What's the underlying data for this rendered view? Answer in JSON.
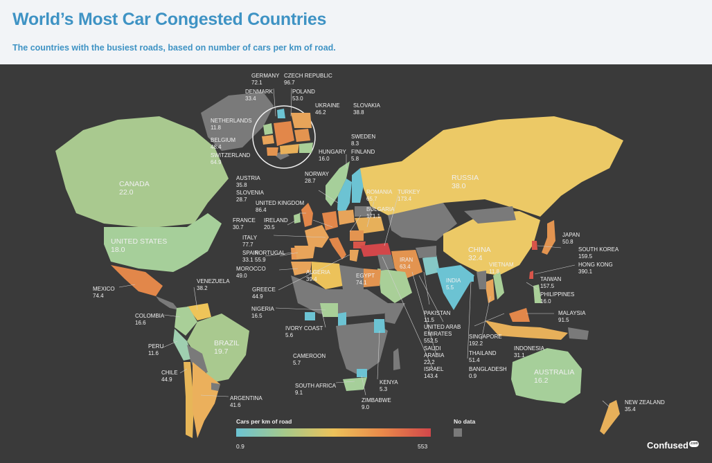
{
  "header": {
    "title": "World’s Most Car Congested Countries",
    "subtitle": "The countries with the busiest roads, based on number of cars per km of road."
  },
  "colors": {
    "no_data": "#7a7a7a",
    "scale_low": "#6cc3d3",
    "scale_mid": "#ecc25a",
    "scale_high": "#d2474a",
    "map_background": "#3a3a3a",
    "title": "#3f93c4"
  },
  "legend": {
    "title": "Cars per km of road",
    "min": "0.9",
    "max": "553",
    "no_data_label": "No data"
  },
  "brand": {
    "name": "Confused",
    "suffix": ".com"
  },
  "countries": {
    "germany": {
      "name": "GERMANY",
      "value": "72.1"
    },
    "czech": {
      "name": "CZECH REPUBLIC",
      "value": "96.7"
    },
    "denmark": {
      "name": "DENMARK",
      "value": "33.4"
    },
    "poland": {
      "name": "POLAND",
      "value": "53.0"
    },
    "ukraine": {
      "name": "UKRAINE",
      "value": "46.2"
    },
    "slovakia": {
      "name": "SLOVAKIA",
      "value": "38.8"
    },
    "netherlands": {
      "name": "NETHERLANDS",
      "value": "11.8"
    },
    "belgium": {
      "name": "BELGIUM",
      "value": "48.4"
    },
    "switzerland": {
      "name": "SWITZERLAND",
      "value": "64.9"
    },
    "hungary": {
      "name": "HUNGARY",
      "value": "16.0"
    },
    "sweden": {
      "name": "SWEDEN",
      "value": "8.3"
    },
    "finland": {
      "name": "FINLAND",
      "value": "5.8"
    },
    "norway": {
      "name": "NORWAY",
      "value": "28.7"
    },
    "austria": {
      "name": "AUSTRIA",
      "value": "35.8"
    },
    "slovenia": {
      "name": "SLOVENIA",
      "value": "28.7"
    },
    "uk": {
      "name": "UNITED KINGDOM",
      "value": "86.4"
    },
    "ireland": {
      "name": "IRELAND",
      "value": "20.5"
    },
    "france": {
      "name": "FRANCE",
      "value": "30.7"
    },
    "italy": {
      "name": "ITALY",
      "value": "77.7"
    },
    "portugal": {
      "name": "PORTUGAL",
      "value": "55.9"
    },
    "spain": {
      "name": "SPAIN",
      "value": "33.1"
    },
    "morocco": {
      "name": "MOROCCO",
      "value": "49.0"
    },
    "greece": {
      "name": "GREECE",
      "value": "44.9"
    },
    "romania": {
      "name": "ROMANIA",
      "value": "65.7"
    },
    "bulgaria": {
      "name": "BULGARIA",
      "value": "171.1"
    },
    "turkey": {
      "name": "TURKEY",
      "value": "173.4"
    },
    "russia": {
      "name": "RUSSIA",
      "value": "38.0"
    },
    "canada": {
      "name": "CANADA",
      "value": "22.0"
    },
    "usa": {
      "name": "UNITED STATES",
      "value": "18.0"
    },
    "mexico": {
      "name": "MEXICO",
      "value": "74.4"
    },
    "venezuela": {
      "name": "VENEZUELA",
      "value": "38.2"
    },
    "colombia": {
      "name": "COLOMBIA",
      "value": "16.6"
    },
    "peru": {
      "name": "PERU",
      "value": "11.6"
    },
    "brazil": {
      "name": "BRAZIL",
      "value": "19.7"
    },
    "chile": {
      "name": "CHILE",
      "value": "44.9"
    },
    "argentina": {
      "name": "ARGENTINA",
      "value": "41.6"
    },
    "algeria": {
      "name": "ALGERIA",
      "value": "39.4"
    },
    "egypt": {
      "name": "EGYPT",
      "value": "74.1"
    },
    "iran": {
      "name": "IRAN",
      "value": "63.4"
    },
    "india": {
      "name": "INDIA",
      "value": "5.5"
    },
    "china": {
      "name": "CHINA",
      "value": "32.4"
    },
    "japan": {
      "name": "JAPAN",
      "value": "50.8"
    },
    "south_korea": {
      "name": "SOUTH KOREA",
      "value": "159.5"
    },
    "hong_kong": {
      "name": "HONG KONG",
      "value": "390.1"
    },
    "vietnam": {
      "name": "VIETNAM",
      "value": "11.8"
    },
    "taiwan": {
      "name": "TAIWAN",
      "value": "157.5"
    },
    "philippines": {
      "name": "PHILIPPINES",
      "value": "16.0"
    },
    "malaysia": {
      "name": "MALAYSIA",
      "value": "91.5"
    },
    "nigeria": {
      "name": "NIGERIA",
      "value": "16.5"
    },
    "ivory_coast": {
      "name": "IVORY COAST",
      "value": "5.6"
    },
    "cameroon": {
      "name": "CAMEROON",
      "value": "5.7"
    },
    "south_africa": {
      "name": "SOUTH AFRICA",
      "value": "9.1"
    },
    "kenya": {
      "name": "KENYA",
      "value": "5.3"
    },
    "zimbabwe": {
      "name": "ZIMBABWE",
      "value": "9.0"
    },
    "pakistan": {
      "name": "PAKISTAN",
      "value": "11.5"
    },
    "uae": {
      "name": "UNITED ARAB EMIRATES",
      "value": "552.5"
    },
    "saudi": {
      "name": "SAUDI ARABIA",
      "value": "22.2"
    },
    "israel": {
      "name": "ISRAEL",
      "value": "143.4"
    },
    "singapore": {
      "name": "SINGAPORE",
      "value": "192.2"
    },
    "thailand": {
      "name": "THAILAND",
      "value": "51.4"
    },
    "bangladesh": {
      "name": "BANGLADESH",
      "value": "0.9"
    },
    "indonesia": {
      "name": "INDONESIA",
      "value": "31.1"
    },
    "australia": {
      "name": "AUSTRALIA",
      "value": "16.2"
    },
    "new_zealand": {
      "name": "NEW ZEALAND",
      "value": "35.4"
    }
  }
}
